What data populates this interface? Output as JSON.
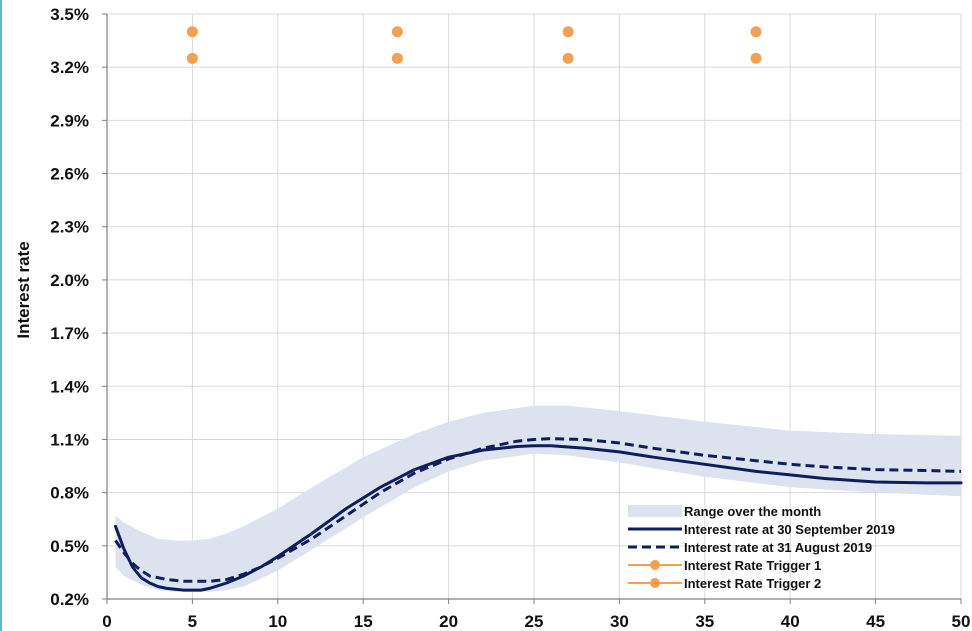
{
  "chart_data": {
    "type": "line",
    "title": "",
    "xlabel": "",
    "ylabel": "Interest rate",
    "xlim": [
      0,
      50
    ],
    "ylim": [
      0.2,
      3.5
    ],
    "x_ticks": [
      0,
      5,
      10,
      15,
      20,
      25,
      30,
      35,
      40,
      45,
      50
    ],
    "x_tick_labels": [
      "0",
      "5",
      "10",
      "15",
      "20",
      "25",
      "30",
      "35",
      "40",
      "45",
      "50"
    ],
    "y_ticks": [
      0.2,
      0.5,
      0.8,
      1.1,
      1.4,
      1.7,
      2.0,
      2.3,
      2.6,
      2.9,
      3.2,
      3.5
    ],
    "y_tick_labels": [
      "0.2%",
      "0.5%",
      "0.8%",
      "1.1%",
      "1.4%",
      "1.7%",
      "2.0%",
      "2.3%",
      "2.6%",
      "2.9%",
      "3.2%",
      "3.5%"
    ],
    "grid": true,
    "legend_position": "bottom-right",
    "band": {
      "name": "Range over the month",
      "color": "#dce3ef",
      "x": [
        0.5,
        1,
        2,
        3,
        4,
        5,
        6,
        7,
        8,
        10,
        12,
        15,
        18,
        20,
        22,
        25,
        27,
        30,
        35,
        40,
        45,
        50
      ],
      "upper": [
        0.67,
        0.63,
        0.58,
        0.54,
        0.53,
        0.53,
        0.54,
        0.57,
        0.61,
        0.71,
        0.83,
        1.0,
        1.13,
        1.2,
        1.25,
        1.29,
        1.29,
        1.26,
        1.2,
        1.15,
        1.13,
        1.12
      ],
      "lower": [
        0.38,
        0.33,
        0.28,
        0.25,
        0.24,
        0.24,
        0.24,
        0.25,
        0.27,
        0.36,
        0.48,
        0.66,
        0.83,
        0.92,
        0.98,
        1.02,
        1.01,
        0.97,
        0.89,
        0.83,
        0.8,
        0.78
      ]
    },
    "series": [
      {
        "name": "Interest rate at 30 September 2019",
        "color": "#0f1f5c",
        "style": "solid",
        "x": [
          0.5,
          1,
          1.5,
          2,
          2.5,
          3,
          3.5,
          4,
          4.5,
          5,
          5.5,
          6,
          7,
          8,
          9,
          10,
          12,
          14,
          16,
          18,
          20,
          22,
          24,
          25,
          26,
          28,
          30,
          32,
          35,
          38,
          40,
          42,
          45,
          48,
          50
        ],
        "values": [
          0.61,
          0.48,
          0.38,
          0.32,
          0.29,
          0.27,
          0.26,
          0.255,
          0.25,
          0.25,
          0.25,
          0.26,
          0.29,
          0.33,
          0.38,
          0.44,
          0.57,
          0.71,
          0.83,
          0.93,
          1.0,
          1.04,
          1.06,
          1.065,
          1.065,
          1.05,
          1.03,
          1.0,
          0.96,
          0.92,
          0.9,
          0.88,
          0.86,
          0.855,
          0.855
        ]
      },
      {
        "name": "Interest rate at 31 August 2019",
        "color": "#0f1f5c",
        "style": "dashed",
        "x": [
          0.5,
          1,
          1.5,
          2,
          2.5,
          3,
          3.5,
          4,
          4.5,
          5,
          5.5,
          6,
          7,
          8,
          9,
          10,
          12,
          14,
          16,
          18,
          20,
          22,
          24,
          25,
          26,
          28,
          30,
          32,
          35,
          38,
          40,
          42,
          45,
          48,
          50
        ],
        "values": [
          0.53,
          0.46,
          0.4,
          0.36,
          0.33,
          0.32,
          0.31,
          0.305,
          0.3,
          0.3,
          0.3,
          0.3,
          0.31,
          0.34,
          0.38,
          0.43,
          0.54,
          0.67,
          0.8,
          0.91,
          0.99,
          1.05,
          1.09,
          1.1,
          1.105,
          1.1,
          1.08,
          1.05,
          1.01,
          0.98,
          0.96,
          0.945,
          0.93,
          0.925,
          0.92
        ]
      },
      {
        "name": "Interest Rate Trigger 1",
        "color": "#f2a054",
        "style": "markers",
        "x": [
          5,
          17,
          27,
          38
        ],
        "values": [
          3.4,
          3.4,
          3.4,
          3.4
        ]
      },
      {
        "name": "Interest Rate Trigger 2",
        "color": "#f2a054",
        "style": "markers",
        "x": [
          5,
          17,
          27,
          38
        ],
        "values": [
          3.25,
          3.25,
          3.25,
          3.25
        ]
      }
    ]
  }
}
